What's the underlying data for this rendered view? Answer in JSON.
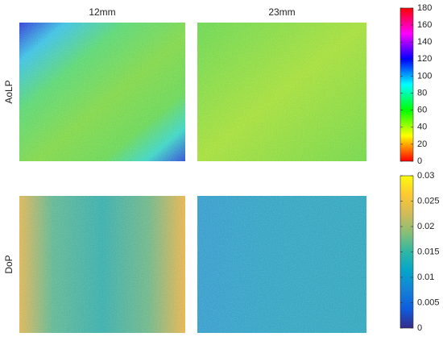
{
  "columns": [
    "12mm",
    "23mm"
  ],
  "rows": [
    {
      "label": "AoLP",
      "colormap": "hsv",
      "clim": [
        0,
        180
      ],
      "cticks": [
        0,
        20,
        40,
        60,
        80,
        100,
        120,
        140,
        160,
        180
      ]
    },
    {
      "label": "DoP",
      "colormap": "parula",
      "clim": [
        0,
        0.03
      ],
      "cticks": [
        0,
        0.005,
        0.01,
        0.015,
        0.02,
        0.025,
        0.03
      ]
    }
  ]
}
